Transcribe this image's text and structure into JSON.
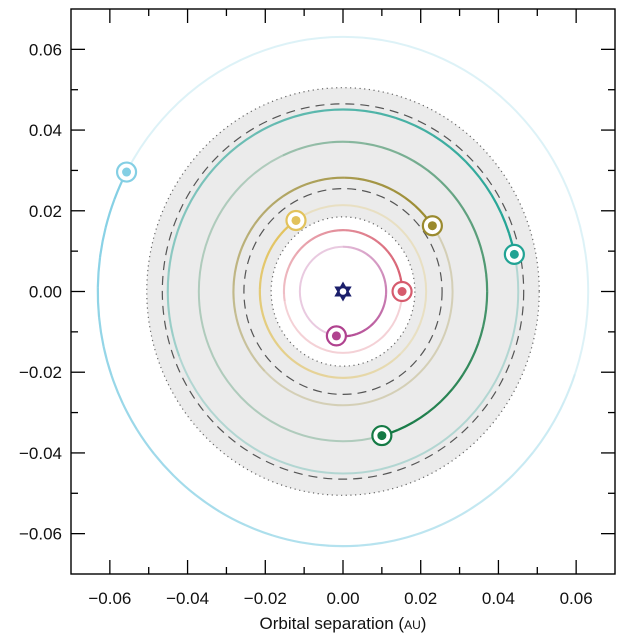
{
  "chart_data": {
    "type": "scatter",
    "title": "",
    "xlabel": "Orbital separation (AU)",
    "xlabel_main": "Orbital separation (",
    "xlabel_unit": "AU",
    "xlabel_close": ")",
    "ylabel": "",
    "xlim": [
      -0.07,
      0.07
    ],
    "ylim": [
      -0.07,
      0.07
    ],
    "grid": false,
    "x_ticks": [
      -0.06,
      -0.04,
      -0.02,
      0.0,
      0.02,
      0.04,
      0.06
    ],
    "y_ticks": [
      -0.06,
      -0.04,
      -0.02,
      0.0,
      0.02,
      0.04,
      0.06
    ],
    "x_tick_labels": [
      "−0.06",
      "−0.04",
      "−0.02",
      "0.00",
      "0.02",
      "0.04",
      "0.06"
    ],
    "y_tick_labels": [
      "−0.06",
      "−0.04",
      "−0.02",
      "0.00",
      "0.02",
      "0.04",
      "0.06"
    ],
    "star": {
      "x": 0.0,
      "y": 0.0,
      "color": "#1b1f6b"
    },
    "habitable_zone": {
      "inner_edge_au": 0.0185,
      "outer_edge_au": 0.0505,
      "fill_color": "#ebebeb",
      "dashed_radii_au": [
        0.0255,
        0.0465
      ],
      "dotted_radii_au": [
        0.0185,
        0.0505
      ]
    },
    "series": [
      {
        "radius_au": 0.0111,
        "x": -0.0017,
        "y": -0.011,
        "color": "#b0428f"
      },
      {
        "radius_au": 0.0152,
        "x": 0.0152,
        "y": 0.0,
        "color": "#d65b6d"
      },
      {
        "radius_au": 0.0214,
        "x": -0.0121,
        "y": 0.0176,
        "color": "#e2c25b"
      },
      {
        "radius_au": 0.0282,
        "x": 0.023,
        "y": 0.0163,
        "color": "#9a8a2e"
      },
      {
        "radius_au": 0.0371,
        "x": 0.01,
        "y": -0.0357,
        "color": "#157a45"
      },
      {
        "radius_au": 0.0451,
        "x": 0.0441,
        "y": 0.0092,
        "color": "#21a394"
      },
      {
        "radius_au": 0.0631,
        "x": -0.0557,
        "y": 0.0296,
        "color": "#84cfe4"
      }
    ]
  }
}
